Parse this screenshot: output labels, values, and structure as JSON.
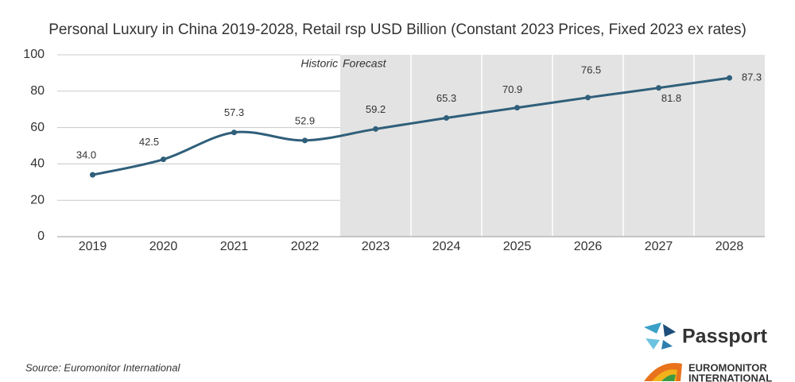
{
  "chart_data": {
    "type": "line",
    "title": "Personal Luxury in China 2019-2028, Retail rsp USD Billion (Constant 2023 Prices, Fixed 2023 ex rates)",
    "categories": [
      "2019",
      "2020",
      "2021",
      "2022",
      "2023",
      "2024",
      "2025",
      "2026",
      "2027",
      "2028"
    ],
    "values": [
      34.0,
      42.5,
      57.3,
      52.9,
      59.2,
      65.3,
      70.9,
      76.5,
      81.8,
      87.3
    ],
    "value_labels": [
      "34.0",
      "42.5",
      "57.3",
      "52.9",
      "59.2",
      "65.3",
      "70.9",
      "76.5",
      "81.8",
      "87.3"
    ],
    "color": "#2f5f7a",
    "ylim": [
      0,
      100
    ],
    "yticks": [
      0,
      20,
      40,
      60,
      80,
      100
    ],
    "grid": true,
    "annotations": [
      "Historic",
      "Forecast"
    ],
    "forecast_start": "2023",
    "source": "Source: Euromonitor International",
    "logo": {
      "brand": "Passport",
      "company_line1": "EUROMONITOR",
      "company_line2": "INTERNATIONAL"
    }
  }
}
